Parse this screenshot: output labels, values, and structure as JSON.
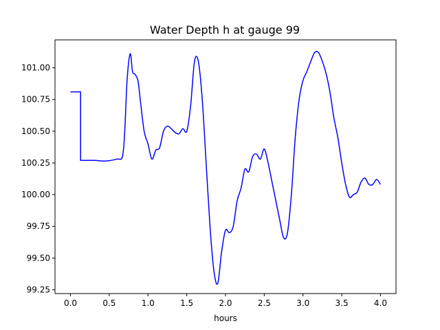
{
  "chart_data": {
    "type": "line",
    "title": "Water Depth h at gauge 99",
    "xlabel": "hours",
    "ylabel": "",
    "xlim": [
      -0.2,
      4.2
    ],
    "ylim": [
      99.22,
      101.22
    ],
    "xticks": [
      "0.0",
      "0.5",
      "1.0",
      "1.5",
      "2.0",
      "2.5",
      "3.0",
      "3.5",
      "4.0"
    ],
    "yticks": [
      "99.25",
      "99.50",
      "99.75",
      "100.00",
      "100.25",
      "100.50",
      "100.75",
      "101.00"
    ],
    "grid": false,
    "series": [
      {
        "color": "#0000ff",
        "x": [
          0.0,
          0.13,
          0.13,
          0.3,
          0.45,
          0.6,
          0.67,
          0.7,
          0.73,
          0.77,
          0.8,
          0.83,
          0.87,
          0.9,
          0.95,
          1.0,
          1.05,
          1.1,
          1.15,
          1.2,
          1.25,
          1.3,
          1.35,
          1.4,
          1.45,
          1.5,
          1.55,
          1.6,
          1.65,
          1.7,
          1.75,
          1.8,
          1.85,
          1.9,
          1.95,
          2.0,
          2.05,
          2.1,
          2.15,
          2.2,
          2.25,
          2.3,
          2.35,
          2.4,
          2.45,
          2.5,
          2.55,
          2.6,
          2.65,
          2.7,
          2.75,
          2.8,
          2.85,
          2.9,
          2.95,
          3.0,
          3.05,
          3.1,
          3.15,
          3.2,
          3.25,
          3.3,
          3.35,
          3.4,
          3.45,
          3.5,
          3.55,
          3.6,
          3.65,
          3.7,
          3.75,
          3.8,
          3.85,
          3.9,
          3.95,
          4.0
        ],
        "y": [
          100.81,
          100.81,
          100.27,
          100.27,
          100.265,
          100.28,
          100.3,
          100.5,
          100.9,
          101.11,
          100.97,
          100.95,
          100.9,
          100.75,
          100.5,
          100.4,
          100.28,
          100.35,
          100.37,
          100.5,
          100.54,
          100.52,
          100.49,
          100.48,
          100.52,
          100.5,
          100.7,
          101.05,
          101.05,
          100.75,
          100.25,
          99.75,
          99.4,
          99.3,
          99.55,
          99.72,
          99.7,
          99.75,
          99.95,
          100.05,
          100.2,
          100.18,
          100.3,
          100.32,
          100.28,
          100.36,
          100.25,
          100.1,
          99.95,
          99.8,
          99.66,
          99.7,
          100.0,
          100.45,
          100.75,
          100.9,
          100.97,
          101.05,
          101.12,
          101.12,
          101.05,
          100.95,
          100.8,
          100.6,
          100.45,
          100.25,
          100.08,
          99.98,
          100.0,
          100.02,
          100.1,
          100.13,
          100.08,
          100.08,
          100.12,
          100.08
        ]
      }
    ]
  }
}
